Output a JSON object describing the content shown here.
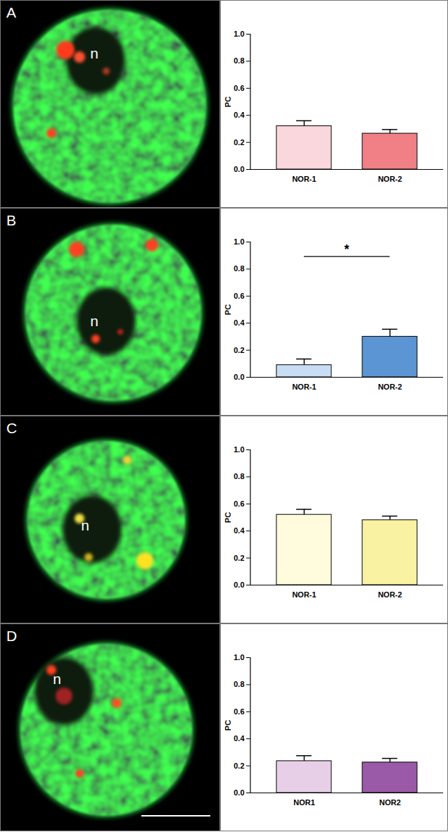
{
  "micrographs": [
    {
      "panel": "A",
      "label": "n"
    },
    {
      "panel": "B",
      "label": "n"
    },
    {
      "panel": "C",
      "label": "n"
    },
    {
      "panel": "D",
      "label": "n"
    }
  ],
  "chart_data": [
    {
      "type": "bar",
      "categories": [
        "NOR-1",
        "NOR-2"
      ],
      "values": [
        0.32,
        0.265
      ],
      "errors": [
        0.04,
        0.03
      ],
      "colors": [
        "#fad7dc",
        "#f07f86"
      ],
      "ylabel": "PC",
      "ylim": [
        0,
        1
      ],
      "yticks": [
        {
          "value": 0,
          "label": "0.0"
        },
        {
          "value": 0.2,
          "label": "0.2"
        },
        {
          "value": 0.4,
          "label": "0.4"
        },
        {
          "value": 0.6,
          "label": "0.6"
        },
        {
          "value": 0.8,
          "label": "0.8"
        },
        {
          "value": 1,
          "label": "1.0"
        }
      ]
    },
    {
      "type": "bar",
      "categories": [
        "NOR-1",
        "NOR-2"
      ],
      "values": [
        0.09,
        0.3
      ],
      "errors": [
        0.045,
        0.055
      ],
      "colors": [
        "#c8ddf3",
        "#5b95d3"
      ],
      "ylabel": "PC",
      "ylim": [
        0,
        1
      ],
      "yticks": [
        {
          "value": 0,
          "label": "0.0"
        },
        {
          "value": 0.2,
          "label": "0.2"
        },
        {
          "value": 0.4,
          "label": "0.4"
        },
        {
          "value": 0.6,
          "label": "0.6"
        },
        {
          "value": 0.8,
          "label": "0.8"
        },
        {
          "value": 1,
          "label": "1.0"
        }
      ],
      "annotations": [
        {
          "text": "*",
          "from": "NOR-1",
          "to": "NOR-2",
          "y": 0.89
        }
      ]
    },
    {
      "type": "bar",
      "categories": [
        "NOR-1",
        "NOR-2"
      ],
      "values": [
        0.52,
        0.48
      ],
      "errors": [
        0.04,
        0.03
      ],
      "colors": [
        "#fffbdc",
        "#f8f2a2"
      ],
      "ylabel": "PC",
      "ylim": [
        0,
        1
      ],
      "yticks": [
        {
          "value": 0,
          "label": "0.0"
        },
        {
          "value": 0.2,
          "label": "0.2"
        },
        {
          "value": 0.4,
          "label": "0.4"
        },
        {
          "value": 0.6,
          "label": "0.6"
        },
        {
          "value": 0.8,
          "label": "0.8"
        },
        {
          "value": 1,
          "label": "1.0"
        }
      ]
    },
    {
      "type": "bar",
      "categories": [
        "NOR1",
        "NOR2"
      ],
      "values": [
        0.235,
        0.225
      ],
      "errors": [
        0.04,
        0.03
      ],
      "colors": [
        "#e8cfe8",
        "#9b5aa8"
      ],
      "ylabel": "PC",
      "ylim": [
        0,
        1
      ],
      "yticks": [
        {
          "value": 0,
          "label": "0.0"
        },
        {
          "value": 0.2,
          "label": "0.2"
        },
        {
          "value": 0.4,
          "label": "0.4"
        },
        {
          "value": 0.6,
          "label": "0.6"
        },
        {
          "value": 0.8,
          "label": "0.8"
        },
        {
          "value": 1,
          "label": "1.0"
        }
      ]
    }
  ]
}
